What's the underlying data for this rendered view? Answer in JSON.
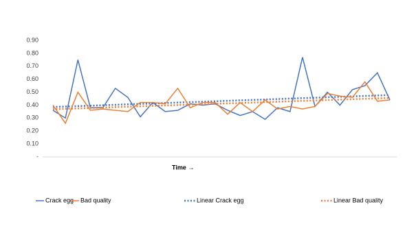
{
  "chart_data": {
    "type": "line",
    "x_label": "Time →",
    "categories": [
      null,
      null,
      null,
      null,
      null,
      null,
      null,
      null,
      null,
      null,
      null,
      null,
      null,
      null,
      null,
      null,
      null,
      null,
      null,
      null,
      null,
      null,
      null,
      null,
      null,
      null,
      null,
      null
    ],
    "series": [
      {
        "name": "Crack egg",
        "color": "#4472c4",
        "trendline": {
          "name": "Linear Crack egg"
        },
        "values": [
          0.36,
          0.3,
          0.75,
          0.38,
          0.38,
          0.53,
          0.46,
          0.31,
          0.42,
          0.35,
          0.36,
          0.41,
          0.4,
          0.41,
          0.36,
          0.32,
          0.35,
          0.29,
          0.38,
          0.35,
          0.77,
          0.39,
          0.5,
          0.4,
          0.52,
          0.55,
          0.65,
          0.44
        ]
      },
      {
        "name": "Bad quality",
        "color": "#ed7d31",
        "trendline": {
          "name": "Linear Bad quality"
        },
        "values": [
          0.4,
          0.26,
          0.5,
          0.36,
          0.37,
          0.36,
          0.35,
          0.42,
          0.42,
          0.41,
          0.53,
          0.38,
          0.42,
          0.42,
          0.33,
          0.42,
          0.35,
          0.44,
          0.37,
          0.39,
          0.37,
          0.39,
          0.49,
          0.47,
          0.46,
          0.58,
          0.43,
          0.44
        ]
      }
    ],
    "ylim": [
      0,
      0.9
    ],
    "yticks": [
      {
        "value": 0,
        "label": "-"
      },
      {
        "value": 0.1,
        "label": "0.10"
      },
      {
        "value": 0.2,
        "label": "0.20"
      },
      {
        "value": 0.3,
        "label": "0.30"
      },
      {
        "value": 0.4,
        "label": "0.40"
      },
      {
        "value": 0.5,
        "label": "0.50"
      },
      {
        "value": 0.6,
        "label": "0.60"
      },
      {
        "value": 0.7,
        "label": "0.70"
      },
      {
        "value": 0.8,
        "label": "0.80"
      },
      {
        "value": 0.9,
        "label": "0.90"
      }
    ],
    "grid": false
  }
}
